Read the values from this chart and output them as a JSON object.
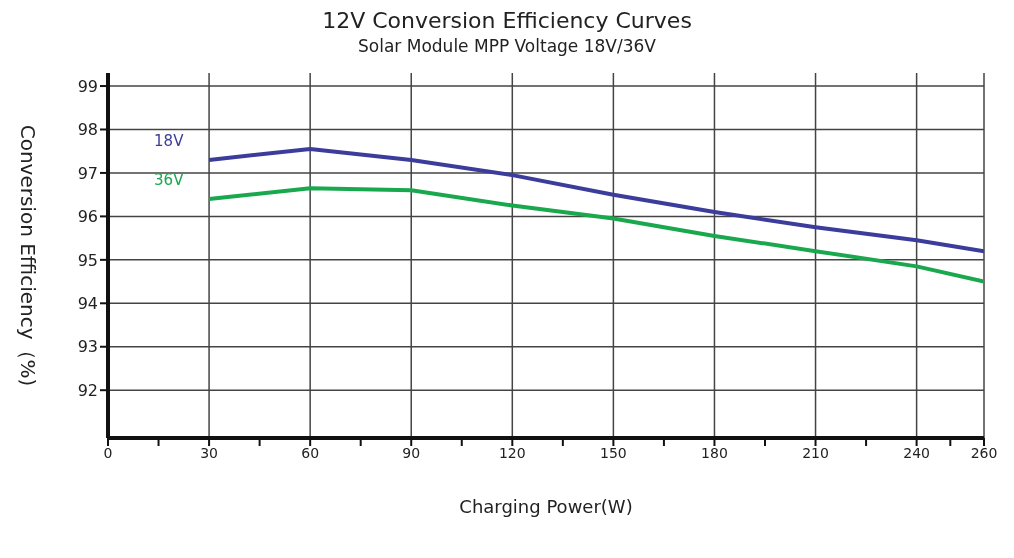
{
  "chart_data": {
    "type": "line",
    "title": "12V Conversion Efficiency Curves",
    "subtitle": "Solar Module MPP Voltage 18V/36V",
    "xlabel": "Charging  Power(W)",
    "ylabel": "Conversion Efficiency（%)",
    "x": [
      30,
      60,
      90,
      120,
      150,
      180,
      210,
      240,
      260
    ],
    "series": [
      {
        "name": "18V",
        "color": "#3c3c9c",
        "values": [
          97.3,
          97.55,
          97.3,
          96.95,
          96.5,
          96.1,
          95.75,
          95.45,
          95.2
        ]
      },
      {
        "name": "36V",
        "color": "#1aa84e",
        "values": [
          96.4,
          96.65,
          96.6,
          96.25,
          95.95,
          95.55,
          95.2,
          94.85,
          94.5
        ]
      }
    ],
    "xlim": [
      0,
      260
    ],
    "xticks": [
      0,
      {
        "value": 15,
        "label": null
      },
      30,
      {
        "value": 45,
        "label": null
      },
      60,
      {
        "value": 75,
        "label": null
      },
      90,
      {
        "value": 105,
        "label": null
      },
      120,
      {
        "value": 135,
        "label": null
      },
      150,
      {
        "value": 165,
        "label": null
      },
      180,
      {
        "value": 195,
        "label": null
      },
      210,
      {
        "value": 225,
        "label": null
      },
      240,
      {
        "value": 250,
        "label": null
      },
      260
    ],
    "ylim": [
      90.9,
      99.3
    ],
    "yticks": [
      92,
      93,
      94,
      95,
      96,
      97,
      98,
      99
    ],
    "grid": true,
    "legend": false,
    "marker": "none",
    "line_style": "solid"
  }
}
